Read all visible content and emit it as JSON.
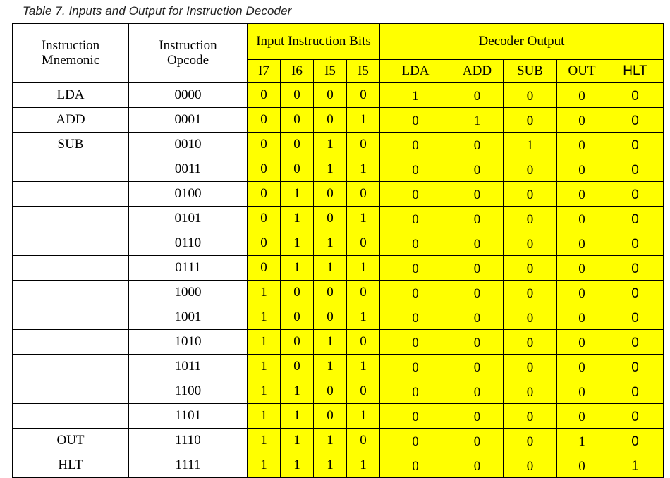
{
  "caption": "Table 7. Inputs and Output for Instruction Decoder",
  "headers": {
    "mnemonic": "Instruction Mnemonic",
    "opcode": "Instruction Opcode",
    "input_group": "Input Instruction Bits",
    "output_group": "Decoder Output",
    "bits": [
      "I7",
      "I6",
      "I5",
      "I5"
    ],
    "outputs": [
      "LDA",
      "ADD",
      "SUB",
      "OUT",
      "HLT"
    ]
  },
  "rows": [
    {
      "mnemonic": "LDA",
      "opcode": "0000",
      "bits": [
        "0",
        "0",
        "0",
        "0"
      ],
      "outputs": [
        "1",
        "0",
        "0",
        "0",
        "0"
      ]
    },
    {
      "mnemonic": "ADD",
      "opcode": "0001",
      "bits": [
        "0",
        "0",
        "0",
        "1"
      ],
      "outputs": [
        "0",
        "1",
        "0",
        "0",
        "0"
      ]
    },
    {
      "mnemonic": "SUB",
      "opcode": "0010",
      "bits": [
        "0",
        "0",
        "1",
        "0"
      ],
      "outputs": [
        "0",
        "0",
        "1",
        "0",
        "0"
      ]
    },
    {
      "mnemonic": "",
      "opcode": "0011",
      "bits": [
        "0",
        "0",
        "1",
        "1"
      ],
      "outputs": [
        "0",
        "0",
        "0",
        "0",
        "0"
      ]
    },
    {
      "mnemonic": "",
      "opcode": "0100",
      "bits": [
        "0",
        "1",
        "0",
        "0"
      ],
      "outputs": [
        "0",
        "0",
        "0",
        "0",
        "0"
      ]
    },
    {
      "mnemonic": "",
      "opcode": "0101",
      "bits": [
        "0",
        "1",
        "0",
        "1"
      ],
      "outputs": [
        "0",
        "0",
        "0",
        "0",
        "0"
      ]
    },
    {
      "mnemonic": "",
      "opcode": "0110",
      "bits": [
        "0",
        "1",
        "1",
        "0"
      ],
      "outputs": [
        "0",
        "0",
        "0",
        "0",
        "0"
      ]
    },
    {
      "mnemonic": "",
      "opcode": "0111",
      "bits": [
        "0",
        "1",
        "1",
        "1"
      ],
      "outputs": [
        "0",
        "0",
        "0",
        "0",
        "0"
      ]
    },
    {
      "mnemonic": "",
      "opcode": "1000",
      "bits": [
        "1",
        "0",
        "0",
        "0"
      ],
      "outputs": [
        "0",
        "0",
        "0",
        "0",
        "0"
      ]
    },
    {
      "mnemonic": "",
      "opcode": "1001",
      "bits": [
        "1",
        "0",
        "0",
        "1"
      ],
      "outputs": [
        "0",
        "0",
        "0",
        "0",
        "0"
      ]
    },
    {
      "mnemonic": "",
      "opcode": "1010",
      "bits": [
        "1",
        "0",
        "1",
        "0"
      ],
      "outputs": [
        "0",
        "0",
        "0",
        "0",
        "0"
      ]
    },
    {
      "mnemonic": "",
      "opcode": "1011",
      "bits": [
        "1",
        "0",
        "1",
        "1"
      ],
      "outputs": [
        "0",
        "0",
        "0",
        "0",
        "0"
      ]
    },
    {
      "mnemonic": "",
      "opcode": "1100",
      "bits": [
        "1",
        "1",
        "0",
        "0"
      ],
      "outputs": [
        "0",
        "0",
        "0",
        "0",
        "0"
      ]
    },
    {
      "mnemonic": "",
      "opcode": "1101",
      "bits": [
        "1",
        "1",
        "0",
        "1"
      ],
      "outputs": [
        "0",
        "0",
        "0",
        "0",
        "0"
      ]
    },
    {
      "mnemonic": "OUT",
      "opcode": "1110",
      "bits": [
        "1",
        "1",
        "1",
        "0"
      ],
      "outputs": [
        "0",
        "0",
        "0",
        "1",
        "0"
      ]
    },
    {
      "mnemonic": "HLT",
      "opcode": "1111",
      "bits": [
        "1",
        "1",
        "1",
        "1"
      ],
      "outputs": [
        "0",
        "0",
        "0",
        "0",
        "1"
      ]
    }
  ],
  "colors": {
    "highlight": "#ffff00",
    "caption_text": "#1f1f1f"
  }
}
